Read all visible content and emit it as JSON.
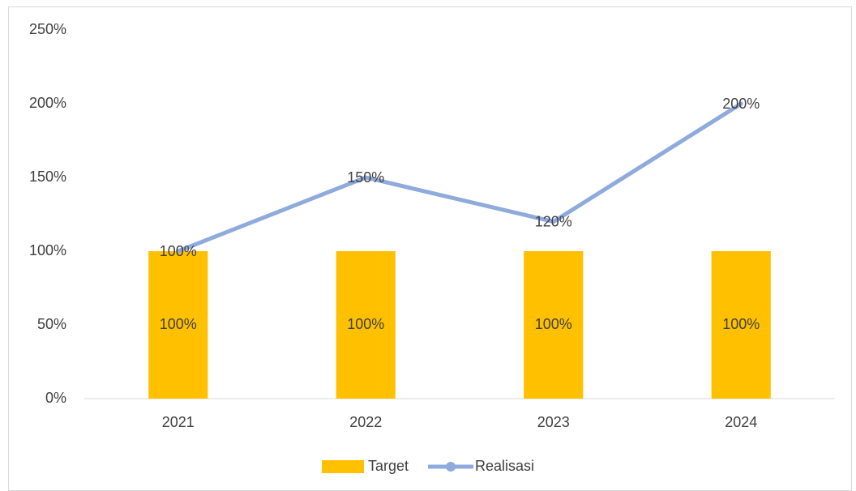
{
  "chart_data": {
    "type": "bar",
    "categories": [
      "2021",
      "2022",
      "2023",
      "2024"
    ],
    "series": [
      {
        "name": "Target",
        "type": "bar",
        "color": "#ffc000",
        "values": [
          100,
          100,
          100,
          100
        ],
        "value_labels": [
          "100%",
          "100%",
          "100%",
          "100%"
        ]
      },
      {
        "name": "Realisasi",
        "type": "line",
        "color": "#8faadc",
        "values": [
          100,
          150,
          120,
          200
        ],
        "value_labels": [
          "100%",
          "150%",
          "120%",
          "200%"
        ]
      }
    ],
    "ylim": [
      0,
      250
    ],
    "yticks": [
      {
        "value": 0,
        "label": "0%"
      },
      {
        "value": 50,
        "label": "50%"
      },
      {
        "value": 100,
        "label": "100%"
      },
      {
        "value": 150,
        "label": "150%"
      },
      {
        "value": 200,
        "label": "200%"
      },
      {
        "value": 250,
        "label": "250%"
      }
    ],
    "legend": "bottom",
    "grid": false
  }
}
